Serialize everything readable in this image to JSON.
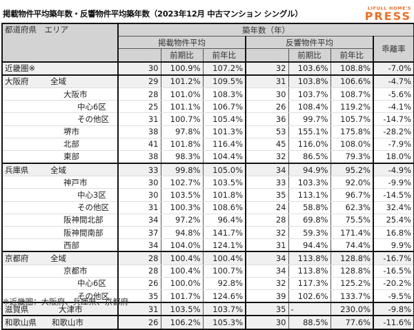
{
  "title": "掲載物件平均築年数・反響物件平均築年数（2023年12月 中古マンション シングル）",
  "logo": {
    "line1": "LIFULL HOME'S",
    "line2": "PRESS",
    "color": "#f26b21"
  },
  "header": {
    "area": "都道府県　エリア",
    "age": "築年数（年）",
    "listed": "掲載物件平均",
    "response": "反響物件平均",
    "divergence": "乖離率",
    "qoq": "前期比",
    "yoy": "前年比"
  },
  "rows": [
    {
      "pref": "近畿圏※",
      "area": "",
      "level": 0,
      "l_age": "30",
      "l_qoq": "100.9%",
      "l_yoy": "107.2%",
      "r_age": "32",
      "r_qoq": "103.6%",
      "r_yoy": "108.8%",
      "div": "-7.0%"
    },
    {
      "pref": "大阪府",
      "area": "全域",
      "level": 0,
      "l_age": "29",
      "l_qoq": "101.2%",
      "l_yoy": "109.5%",
      "r_age": "31",
      "r_qoq": "103.8%",
      "r_yoy": "106.6%",
      "div": "-4.7%"
    },
    {
      "pref": "",
      "area": "大阪市",
      "level": 1,
      "l_age": "28",
      "l_qoq": "101.0%",
      "l_yoy": "108.3%",
      "r_age": "30",
      "r_qoq": "103.7%",
      "r_yoy": "108.7%",
      "div": "-5.6%"
    },
    {
      "pref": "",
      "area": "中心6区",
      "level": 2,
      "l_age": "25",
      "l_qoq": "101.1%",
      "l_yoy": "106.7%",
      "r_age": "26",
      "r_qoq": "108.4%",
      "r_yoy": "119.2%",
      "div": "-4.1%"
    },
    {
      "pref": "",
      "area": "その他区",
      "level": 2,
      "l_age": "31",
      "l_qoq": "100.7%",
      "l_yoy": "105.4%",
      "r_age": "36",
      "r_qoq": "99.7%",
      "r_yoy": "105.7%",
      "div": "-14.7%"
    },
    {
      "pref": "",
      "area": "堺市",
      "level": 1,
      "l_age": "38",
      "l_qoq": "97.8%",
      "l_yoy": "101.3%",
      "r_age": "53",
      "r_qoq": "155.1%",
      "r_yoy": "175.8%",
      "div": "-28.2%"
    },
    {
      "pref": "",
      "area": "北部",
      "level": 1,
      "l_age": "41",
      "l_qoq": "101.8%",
      "l_yoy": "116.4%",
      "r_age": "45",
      "r_qoq": "116.0%",
      "r_yoy": "108.0%",
      "div": "-7.9%"
    },
    {
      "pref": "",
      "area": "東部",
      "level": 1,
      "l_age": "38",
      "l_qoq": "98.3%",
      "l_yoy": "104.4%",
      "r_age": "32",
      "r_qoq": "86.5%",
      "r_yoy": "79.3%",
      "div": "18.0%"
    },
    {
      "pref": "兵庫県",
      "area": "全域",
      "level": 0,
      "l_age": "33",
      "l_qoq": "99.8%",
      "l_yoy": "105.0%",
      "r_age": "34",
      "r_qoq": "94.9%",
      "r_yoy": "95.2%",
      "div": "-4.9%"
    },
    {
      "pref": "",
      "area": "神戸市",
      "level": 1,
      "l_age": "30",
      "l_qoq": "102.7%",
      "l_yoy": "103.5%",
      "r_age": "33",
      "r_qoq": "103.3%",
      "r_yoy": "92.0%",
      "div": "-9.9%"
    },
    {
      "pref": "",
      "area": "中心3区",
      "level": 2,
      "l_age": "30",
      "l_qoq": "103.5%",
      "l_yoy": "101.8%",
      "r_age": "35",
      "r_qoq": "113.1%",
      "r_yoy": "96.7%",
      "div": "-14.5%"
    },
    {
      "pref": "",
      "area": "その他区",
      "level": 2,
      "l_age": "31",
      "l_qoq": "100.3%",
      "l_yoy": "108.6%",
      "r_age": "24",
      "r_qoq": "58.8%",
      "r_yoy": "62.3%",
      "div": "32.4%"
    },
    {
      "pref": "",
      "area": "阪神間北部",
      "level": 1,
      "l_age": "34",
      "l_qoq": "97.2%",
      "l_yoy": "96.4%",
      "r_age": "28",
      "r_qoq": "69.8%",
      "r_yoy": "75.5%",
      "div": "25.4%"
    },
    {
      "pref": "",
      "area": "阪神間南部",
      "level": 1,
      "l_age": "37",
      "l_qoq": "94.8%",
      "l_yoy": "141.7%",
      "r_age": "32",
      "r_qoq": "59.3%",
      "r_yoy": "171.4%",
      "div": "16.8%"
    },
    {
      "pref": "",
      "area": "西部",
      "level": 1,
      "l_age": "34",
      "l_qoq": "104.0%",
      "l_yoy": "124.1%",
      "r_age": "31",
      "r_qoq": "94.4%",
      "r_yoy": "74.4%",
      "div": "9.9%"
    },
    {
      "pref": "京都府",
      "area": "全域",
      "level": 0,
      "l_age": "28",
      "l_qoq": "100.4%",
      "l_yoy": "100.4%",
      "r_age": "34",
      "r_qoq": "113.8%",
      "r_yoy": "128.8%",
      "div": "-16.7%"
    },
    {
      "pref": "",
      "area": "京都市",
      "level": 1,
      "l_age": "28",
      "l_qoq": "100.4%",
      "l_yoy": "100.7%",
      "r_age": "34",
      "r_qoq": "113.8%",
      "r_yoy": "128.8%",
      "div": "-16.5%"
    },
    {
      "pref": "",
      "area": "中心6区",
      "level": 2,
      "l_age": "26",
      "l_qoq": "100.0%",
      "l_yoy": "92.8%",
      "r_age": "32",
      "r_qoq": "117.3%",
      "r_yoy": "125.2%",
      "div": "-20.2%"
    },
    {
      "pref": "",
      "area": "その他区",
      "level": 2,
      "l_age": "35",
      "l_qoq": "101.7%",
      "l_yoy": "124.6%",
      "r_age": "39",
      "r_qoq": "102.6%",
      "r_yoy": "133.7%",
      "div": "-9.5%"
    },
    {
      "pref": "滋賀県",
      "area": "大津市",
      "level": 0,
      "l_age": "31",
      "l_qoq": "103.5%",
      "l_yoy": "103.7%",
      "r_age": "35",
      "r_qoq": "-",
      "r_yoy": "230.0%",
      "div": "-9.8%"
    },
    {
      "pref": "和歌山県",
      "area": "和歌山市",
      "level": 0,
      "l_age": "26",
      "l_qoq": "106.2%",
      "l_yoy": "105.3%",
      "r_age": "30",
      "r_qoq": "88.5%",
      "r_yoy": "77.6%",
      "div": "-11.6%"
    }
  ],
  "footnote": "※近畿圏：大阪府、兵庫県、京都府"
}
